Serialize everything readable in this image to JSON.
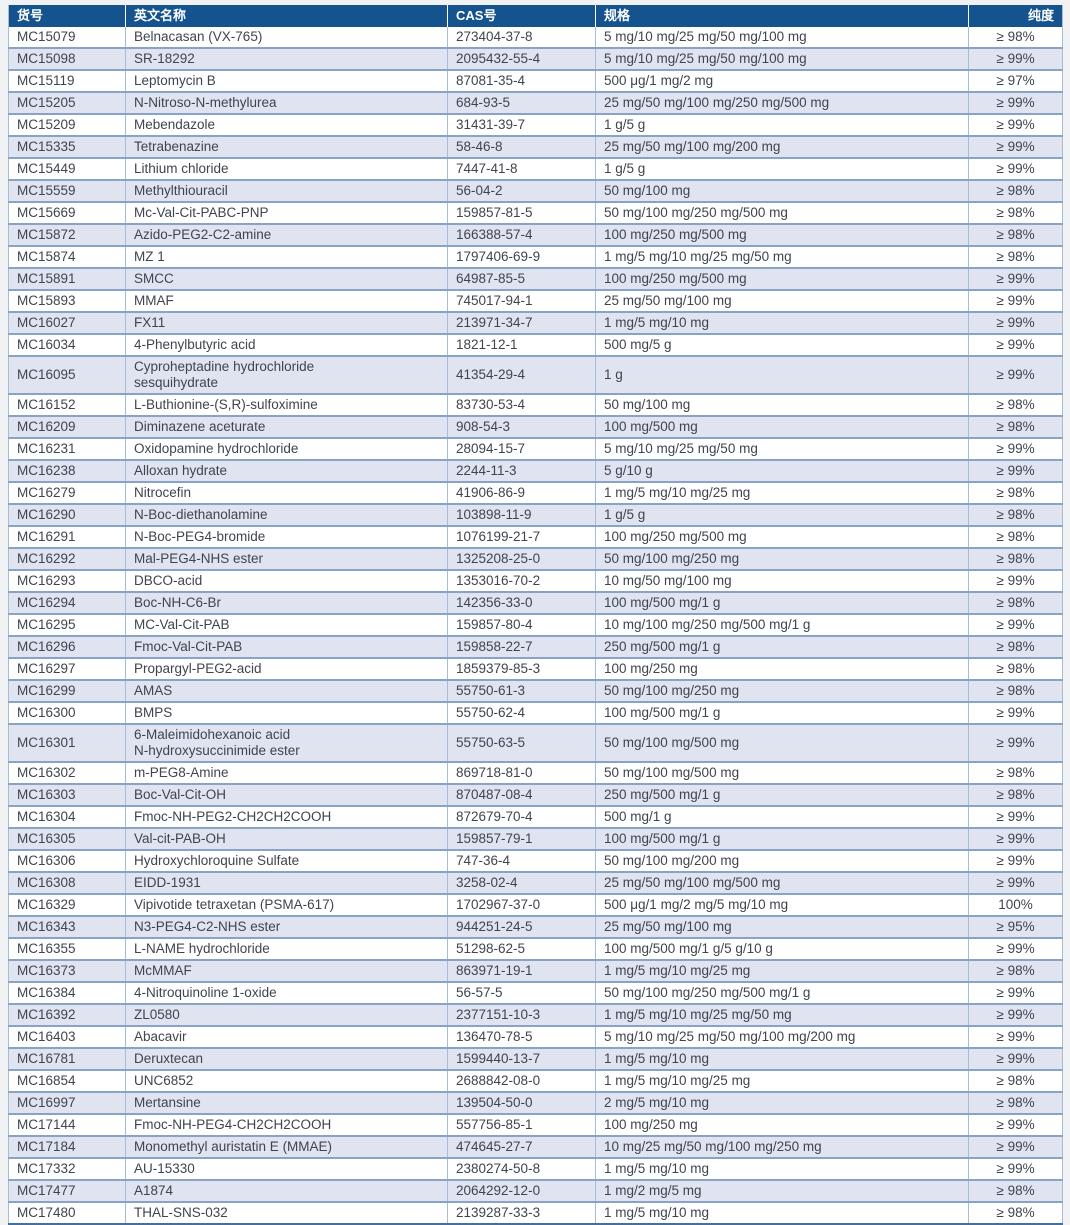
{
  "colors": {
    "page_bg": "#f1f2f3",
    "header_bg": "#15538e",
    "header_text": "#ffffff",
    "row_alt_bg": "#e0e4f0",
    "grid_line": "#a9bcd6",
    "row_divider": "#87a3c6",
    "table_bottom_border": "#44709f",
    "body_text": "#3f444e"
  },
  "table": {
    "columns": [
      {
        "key": "catalog",
        "label": "货号"
      },
      {
        "key": "name",
        "label": "英文名称"
      },
      {
        "key": "cas",
        "label": "CAS号"
      },
      {
        "key": "spec",
        "label": "规格"
      },
      {
        "key": "purity",
        "label": "纯度"
      }
    ],
    "rows": [
      [
        "MC15079",
        "Belnacasan (VX-765)",
        "273404-37-8",
        "5 mg/10 mg/25 mg/50 mg/100 mg",
        "≥ 98%"
      ],
      [
        "MC15098",
        "SR-18292",
        "2095432-55-4",
        "5 mg/10 mg/25 mg/50 mg/100 mg",
        "≥ 99%"
      ],
      [
        "MC15119",
        "Leptomycin B",
        "87081-35-4",
        "500 μg/1 mg/2 mg",
        "≥ 97%"
      ],
      [
        "MC15205",
        "N-Nitroso-N-methylurea",
        "684-93-5",
        "25 mg/50 mg/100 mg/250 mg/500 mg",
        "≥ 99%"
      ],
      [
        "MC15209",
        "Mebendazole",
        "31431-39-7",
        "1 g/5 g",
        "≥ 99%"
      ],
      [
        "MC15335",
        "Tetrabenazine",
        "58-46-8",
        "25 mg/50 mg/100 mg/200 mg",
        "≥ 99%"
      ],
      [
        "MC15449",
        "Lithium chloride",
        "7447-41-8",
        "1 g/5 g",
        "≥ 99%"
      ],
      [
        "MC15559",
        "Methylthiouracil",
        "56-04-2",
        "50 mg/100 mg",
        "≥ 98%"
      ],
      [
        "MC15669",
        "Mc-Val-Cit-PABC-PNP",
        "159857-81-5",
        "50 mg/100 mg/250 mg/500 mg",
        "≥ 98%"
      ],
      [
        "MC15872",
        "Azido-PEG2-C2-amine",
        "166388-57-4",
        "100 mg/250 mg/500 mg",
        "≥ 98%"
      ],
      [
        "MC15874",
        "MZ 1",
        "1797406-69-9",
        "1 mg/5 mg/10 mg/25 mg/50 mg",
        "≥ 98%"
      ],
      [
        "MC15891",
        "SMCC",
        "64987-85-5",
        "100 mg/250 mg/500 mg",
        "≥ 99%"
      ],
      [
        "MC15893",
        "MMAF",
        "745017-94-1",
        "25 mg/50 mg/100 mg",
        "≥ 99%"
      ],
      [
        "MC16027",
        "FX11",
        "213971-34-7",
        "1 mg/5 mg/10 mg",
        "≥ 99%"
      ],
      [
        "MC16034",
        "4-Phenylbutyric acid",
        "1821-12-1",
        "500 mg/5 g",
        "≥ 99%"
      ],
      [
        "MC16095",
        "Cyproheptadine hydrochloride\nsesquihydrate",
        "41354-29-4",
        "1 g",
        "≥ 99%"
      ],
      [
        "MC16152",
        "L-Buthionine-(S,R)-sulfoximine",
        "83730-53-4",
        "50 mg/100 mg",
        "≥ 98%"
      ],
      [
        "MC16209",
        "Diminazene aceturate",
        "908-54-3",
        "100 mg/500 mg",
        "≥ 98%"
      ],
      [
        "MC16231",
        "Oxidopamine hydrochloride",
        "28094-15-7",
        "5 mg/10 mg/25 mg/50 mg",
        "≥ 99%"
      ],
      [
        "MC16238",
        "Alloxan hydrate",
        "2244-11-3",
        "5 g/10 g",
        "≥ 99%"
      ],
      [
        "MC16279",
        "Nitrocefin",
        "41906-86-9",
        "1 mg/5 mg/10 mg/25 mg",
        "≥ 98%"
      ],
      [
        "MC16290",
        "N-Boc-diethanolamine",
        "103898-11-9",
        "1 g/5 g",
        "≥ 98%"
      ],
      [
        "MC16291",
        "N-Boc-PEG4-bromide",
        "1076199-21-7",
        "100 mg/250 mg/500 mg",
        "≥ 98%"
      ],
      [
        "MC16292",
        "Mal-PEG4-NHS ester",
        "1325208-25-0",
        "50 mg/100 mg/250 mg",
        "≥ 98%"
      ],
      [
        "MC16293",
        "DBCO-acid",
        "1353016-70-2",
        "10 mg/50 mg/100 mg",
        "≥ 99%"
      ],
      [
        "MC16294",
        "Boc-NH-C6-Br",
        "142356-33-0",
        "100 mg/500 mg/1 g",
        "≥ 98%"
      ],
      [
        "MC16295",
        "MC-Val-Cit-PAB",
        "159857-80-4",
        "10 mg/100 mg/250 mg/500 mg/1 g",
        "≥ 99%"
      ],
      [
        "MC16296",
        "Fmoc-Val-Cit-PAB",
        "159858-22-7",
        "250 mg/500 mg/1 g",
        "≥ 98%"
      ],
      [
        "MC16297",
        "Propargyl-PEG2-acid",
        "1859379-85-3",
        "100 mg/250 mg",
        "≥ 98%"
      ],
      [
        "MC16299",
        "AMAS",
        "55750-61-3",
        "50 mg/100 mg/250 mg",
        "≥ 98%"
      ],
      [
        "MC16300",
        "BMPS",
        "55750-62-4",
        "100 mg/500 mg/1 g",
        "≥ 99%"
      ],
      [
        "MC16301",
        "6-Maleimidohexanoic acid\nN-hydroxysuccinimide ester",
        "55750-63-5",
        "50 mg/100 mg/500 mg",
        "≥ 99%"
      ],
      [
        "MC16302",
        "m-PEG8-Amine",
        "869718-81-0",
        "50 mg/100 mg/500 mg",
        "≥ 98%"
      ],
      [
        "MC16303",
        "Boc-Val-Cit-OH",
        "870487-08-4",
        "250 mg/500 mg/1 g",
        "≥ 98%"
      ],
      [
        "MC16304",
        "Fmoc-NH-PEG2-CH2CH2COOH",
        "872679-70-4",
        "500 mg/1 g",
        "≥ 99%"
      ],
      [
        "MC16305",
        "Val-cit-PAB-OH",
        "159857-79-1",
        "100 mg/500 mg/1 g",
        "≥ 99%"
      ],
      [
        "MC16306",
        "Hydroxychloroquine Sulfate",
        "747-36-4",
        "50 mg/100 mg/200 mg",
        "≥ 99%"
      ],
      [
        "MC16308",
        "EIDD-1931",
        "3258-02-4",
        "25 mg/50 mg/100 mg/500 mg",
        "≥ 99%"
      ],
      [
        "MC16329",
        "Vipivotide tetraxetan (PSMA-617)",
        "1702967-37-0",
        "500 μg/1 mg/2 mg/5 mg/10 mg",
        "100%"
      ],
      [
        "MC16343",
        "N3-PEG4-C2-NHS ester",
        "944251-24-5",
        "25 mg/50 mg/100 mg",
        "≥ 95%"
      ],
      [
        "MC16355",
        "L-NAME hydrochloride",
        "51298-62-5",
        "100 mg/500 mg/1 g/5 g/10 g",
        "≥ 99%"
      ],
      [
        "MC16373",
        "McMMAF",
        "863971-19-1",
        "1 mg/5 mg/10 mg/25 mg",
        "≥ 98%"
      ],
      [
        "MC16384",
        "4-Nitroquinoline 1-oxide",
        "56-57-5",
        "50 mg/100 mg/250 mg/500 mg/1 g",
        "≥ 99%"
      ],
      [
        "MC16392",
        "ZL0580",
        "2377151-10-3",
        "1 mg/5 mg/10 mg/25 mg/50 mg",
        "≥ 99%"
      ],
      [
        "MC16403",
        "Abacavir",
        "136470-78-5",
        "5 mg/10 mg/25 mg/50 mg/100 mg/200 mg",
        "≥ 99%"
      ],
      [
        "MC16781",
        "Deruxtecan",
        "1599440-13-7",
        "1 mg/5 mg/10 mg",
        "≥ 99%"
      ],
      [
        "MC16854",
        "UNC6852",
        "2688842-08-0",
        "1 mg/5 mg/10 mg/25 mg",
        "≥ 98%"
      ],
      [
        "MC16997",
        "Mertansine",
        "139504-50-0",
        "2 mg/5 mg/10 mg",
        "≥ 98%"
      ],
      [
        "MC17144",
        "Fmoc-NH-PEG4-CH2CH2COOH",
        "557756-85-1",
        "100 mg/250 mg",
        "≥ 99%"
      ],
      [
        "MC17184",
        "Monomethyl auristatin E (MMAE)",
        "474645-27-7",
        "10 mg/25 mg/50 mg/100 mg/250 mg",
        "≥ 99%"
      ],
      [
        "MC17332",
        "AU-15330",
        "2380274-50-8",
        "1 mg/5 mg/10 mg",
        "≥ 99%"
      ],
      [
        "MC17477",
        "A1874",
        "2064292-12-0",
        "1 mg/2 mg/5 mg",
        "≥ 98%"
      ],
      [
        "MC17480",
        "THAL-SNS-032",
        "2139287-33-3",
        "1 mg/5 mg/10 mg",
        "≥ 98%"
      ]
    ]
  }
}
